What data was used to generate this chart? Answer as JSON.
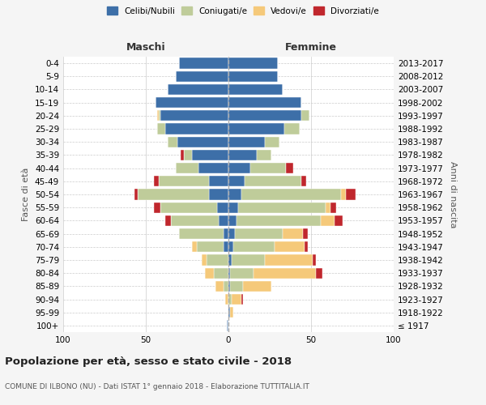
{
  "age_groups": [
    "100+",
    "95-99",
    "90-94",
    "85-89",
    "80-84",
    "75-79",
    "70-74",
    "65-69",
    "60-64",
    "55-59",
    "50-54",
    "45-49",
    "40-44",
    "35-39",
    "30-34",
    "25-29",
    "20-24",
    "15-19",
    "10-14",
    "5-9",
    "0-4"
  ],
  "birth_years": [
    "≤ 1917",
    "1918-1922",
    "1923-1927",
    "1928-1932",
    "1933-1937",
    "1938-1942",
    "1943-1947",
    "1948-1952",
    "1953-1957",
    "1958-1962",
    "1963-1967",
    "1968-1972",
    "1973-1977",
    "1978-1982",
    "1983-1987",
    "1988-1992",
    "1993-1997",
    "1998-2002",
    "2003-2007",
    "2008-2012",
    "2013-2017"
  ],
  "colors": {
    "celibi": "#3d6fa8",
    "coniugati": "#bfcc9a",
    "vedovi": "#f5c97a",
    "divorziati": "#c0272d"
  },
  "males": {
    "celibi": [
      1,
      0,
      0,
      0,
      0,
      0,
      3,
      3,
      6,
      7,
      12,
      12,
      18,
      22,
      31,
      38,
      41,
      44,
      37,
      32,
      30
    ],
    "coniugati": [
      0,
      0,
      0,
      3,
      9,
      13,
      16,
      27,
      29,
      34,
      43,
      30,
      14,
      5,
      6,
      5,
      1,
      0,
      0,
      0,
      0
    ],
    "vedovi": [
      0,
      0,
      2,
      5,
      5,
      3,
      3,
      0,
      0,
      0,
      0,
      0,
      0,
      0,
      0,
      0,
      1,
      0,
      0,
      0,
      0
    ],
    "divorziati": [
      0,
      0,
      0,
      0,
      0,
      0,
      0,
      0,
      3,
      4,
      2,
      3,
      0,
      2,
      0,
      0,
      0,
      0,
      0,
      0,
      0
    ]
  },
  "females": {
    "celibi": [
      0,
      1,
      0,
      1,
      1,
      2,
      3,
      4,
      5,
      6,
      8,
      10,
      13,
      17,
      22,
      34,
      44,
      44,
      33,
      30,
      30
    ],
    "coniugati": [
      0,
      0,
      2,
      8,
      14,
      20,
      25,
      29,
      51,
      53,
      60,
      34,
      22,
      9,
      9,
      9,
      5,
      0,
      0,
      0,
      0
    ],
    "vedovi": [
      0,
      2,
      6,
      17,
      38,
      29,
      18,
      12,
      8,
      3,
      3,
      0,
      0,
      0,
      0,
      0,
      0,
      0,
      0,
      0,
      0
    ],
    "divorziati": [
      0,
      0,
      1,
      0,
      4,
      2,
      2,
      3,
      5,
      3,
      6,
      3,
      4,
      0,
      0,
      0,
      0,
      0,
      0,
      0,
      0
    ]
  },
  "xlim": [
    -100,
    100
  ],
  "xticks": [
    -100,
    -50,
    0,
    50,
    100
  ],
  "xticklabels": [
    "100",
    "50",
    "0",
    "50",
    "100"
  ],
  "title": "Popolazione per età, sesso e stato civile - 2018",
  "subtitle": "COMUNE DI ILBONO (NU) - Dati ISTAT 1° gennaio 2018 - Elaborazione TUTTITALIA.IT",
  "ylabel_left": "Fasce di età",
  "ylabel_right": "Anni di nascita",
  "background": "#f5f5f5",
  "bar_bg": "#ffffff"
}
